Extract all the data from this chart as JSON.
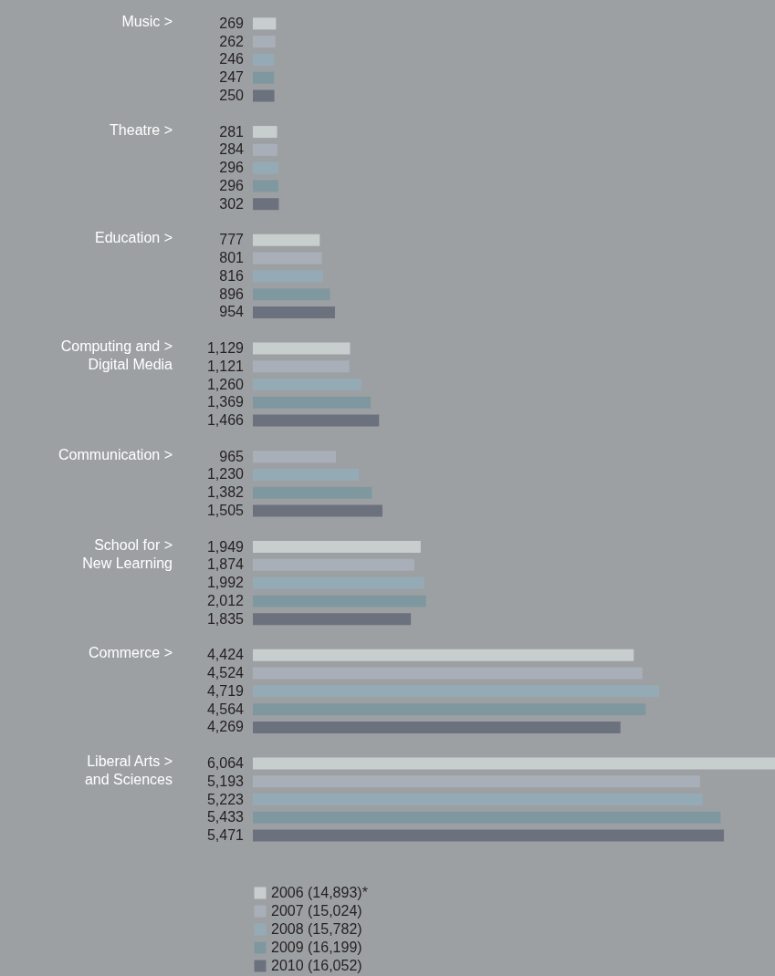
{
  "chart_data": {
    "type": "bar",
    "orientation": "horizontal",
    "legend": "bottom",
    "categories": [
      "Music >",
      "Theatre >",
      "Education >",
      "Computing and >\nDigital Media",
      "Communication >",
      "School for >\nNew Learning",
      "Commerce >",
      "Liberal Arts >\nand Sciences"
    ],
    "series": [
      {
        "name": "2006 (14,893)*",
        "color": "#c8cdcd",
        "values": [
          269,
          281,
          777,
          1129,
          null,
          1949,
          4424,
          6064
        ],
        "value_labels": [
          "269",
          "281",
          "777",
          "1,129",
          null,
          "1,949",
          "4,424",
          "6,064"
        ]
      },
      {
        "name": "2007 (15,024)",
        "color": "#a9afb9",
        "values": [
          262,
          284,
          801,
          1121,
          965,
          1874,
          4524,
          5193
        ],
        "value_labels": [
          "262",
          "284",
          "801",
          "1,121",
          "965",
          "1,874",
          "4,524",
          "5,193"
        ]
      },
      {
        "name": "2008 (15,782)",
        "color": "#94aab5",
        "values": [
          246,
          296,
          816,
          1260,
          1230,
          1992,
          4719,
          5223
        ],
        "value_labels": [
          "246",
          "296",
          "816",
          "1,260",
          "1,230",
          "1,992",
          "4,719",
          "5,223"
        ]
      },
      {
        "name": "2009 (16,199)",
        "color": "#7f98a0",
        "values": [
          247,
          296,
          896,
          1369,
          1382,
          2012,
          4564,
          5433
        ],
        "value_labels": [
          "247",
          "296",
          "896",
          "1,369",
          "1,382",
          "2,012",
          "4,564",
          "5,433"
        ]
      },
      {
        "name": "2010 (16,052)",
        "color": "#6c717e",
        "values": [
          250,
          302,
          954,
          1466,
          1505,
          1835,
          4269,
          5471
        ],
        "value_labels": [
          "250",
          "302",
          "954",
          "1,466",
          "1,505",
          "1,835",
          "4,269",
          "5,471"
        ]
      }
    ]
  }
}
